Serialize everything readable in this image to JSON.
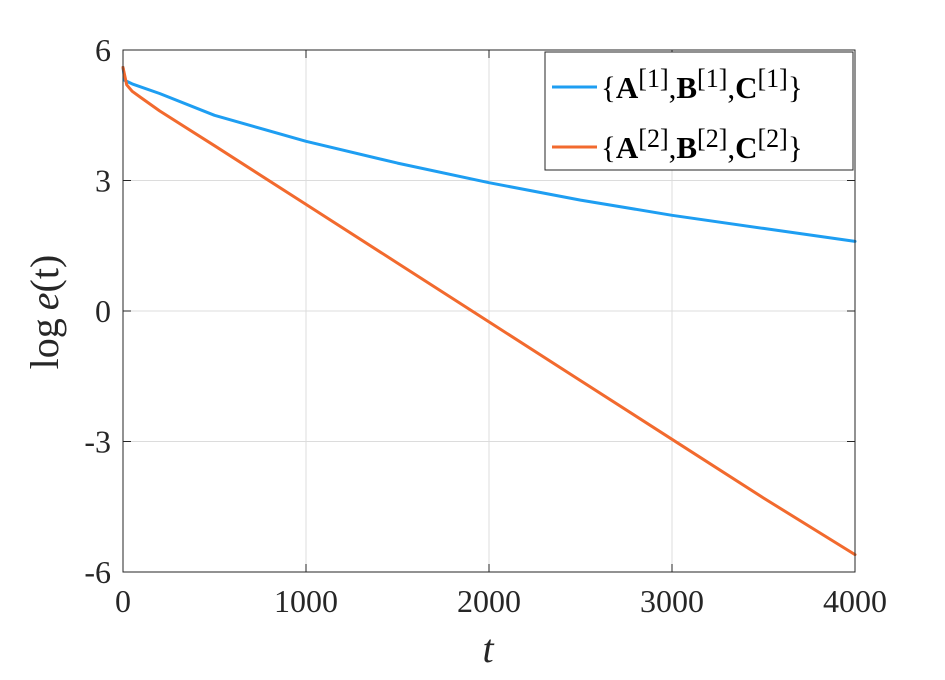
{
  "chart_data": {
    "type": "line",
    "xlabel": "t",
    "ylabel_prefix": "log",
    "ylabel_func": "e",
    "ylabel_arg": "(t)",
    "xlim": [
      0,
      4000
    ],
    "ylim": [
      -6,
      6
    ],
    "x_ticks": [
      0,
      1000,
      2000,
      3000,
      4000
    ],
    "x_tick_labels": [
      "0",
      "1000",
      "2000",
      "3000",
      "4000"
    ],
    "y_ticks": [
      -6,
      -3,
      0,
      3,
      6
    ],
    "y_tick_labels": [
      "-6",
      "-3",
      "0",
      "3",
      "6"
    ],
    "grid": true,
    "legend_position": "top-right",
    "series": [
      {
        "name": "{A[1],B[1],C[1]}",
        "legend": {
          "open": "{",
          "parts": [
            [
              "A",
              "[1]"
            ],
            [
              "B",
              "[1]"
            ],
            [
              "C",
              "[1]"
            ]
          ],
          "close": "}"
        },
        "color": "#1e9ef2",
        "x": [
          0,
          10,
          50,
          200,
          500,
          1000,
          1500,
          2000,
          2500,
          3000,
          3500,
          4000
        ],
        "y": [
          5.6,
          5.3,
          5.22,
          5.0,
          4.5,
          3.9,
          3.4,
          2.95,
          2.55,
          2.2,
          1.9,
          1.6
        ]
      },
      {
        "name": "{A[2],B[2],C[2]}",
        "legend": {
          "open": "{",
          "parts": [
            [
              "A",
              "[2]"
            ],
            [
              "B",
              "[2]"
            ],
            [
              "C",
              "[2]"
            ]
          ],
          "close": "}"
        },
        "color": "#f26a2e",
        "x": [
          0,
          20,
          50,
          100,
          200,
          500,
          1000,
          1500,
          2000,
          2500,
          3000,
          3500,
          4000
        ],
        "y": [
          5.6,
          5.2,
          5.05,
          4.9,
          4.6,
          3.8,
          2.45,
          1.1,
          -0.25,
          -1.6,
          -2.95,
          -4.3,
          -5.6
        ]
      }
    ]
  }
}
